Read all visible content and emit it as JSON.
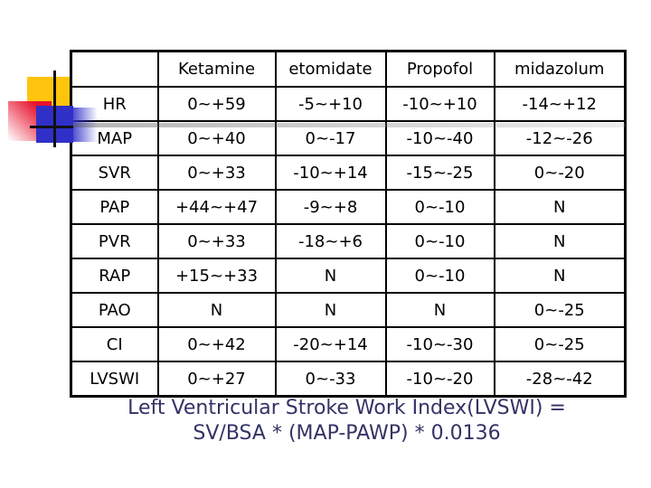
{
  "slide": {
    "background_color": "#ffffff"
  },
  "table": {
    "headers": [
      "",
      "Ketamine",
      "etomidate",
      "Propofol",
      "midazolum"
    ],
    "rows": [
      {
        "label": "HR",
        "values": [
          "0~+59",
          "-5~+10",
          "-10~+10",
          "-14~+12"
        ]
      },
      {
        "label": "MAP",
        "values": [
          "0~+40",
          "0~-17",
          "-10~-40",
          "-12~-26"
        ]
      },
      {
        "label": "SVR",
        "values": [
          "0~+33",
          "-10~+14",
          "-15~-25",
          "0~-20"
        ]
      },
      {
        "label": "PAP",
        "values": [
          "+44~+47",
          "-9~+8",
          "0~-10",
          "N"
        ]
      },
      {
        "label": "PVR",
        "values": [
          "0~+33",
          "-18~+6",
          "0~-10",
          "N"
        ]
      },
      {
        "label": "RAP",
        "values": [
          "+15~+33",
          "N",
          "0~-10",
          "N"
        ]
      },
      {
        "label": "PAO",
        "values": [
          "N",
          "N",
          "N",
          "0~-25"
        ]
      },
      {
        "label": "CI",
        "values": [
          "0~+42",
          "-20~+14",
          "-10~-30",
          "0~-25"
        ]
      },
      {
        "label": "LVSWI",
        "values": [
          "0~+27",
          "0~-33",
          "-10~-20",
          "-28~-42"
        ]
      }
    ],
    "border_color": "#000000",
    "text_color": "#000000"
  },
  "caption": {
    "line1": "Left Ventricular Stroke Work Index(LVSWI) =",
    "line2": "SV/BSA * (MAP-PAWP) * 0.0136",
    "color": "#333366"
  },
  "decoration": {
    "yellow_square_color": "#ffc40e",
    "red_square_color": "#e8112d",
    "blue_square_color": "#3030c8",
    "line_color": "#101010"
  }
}
